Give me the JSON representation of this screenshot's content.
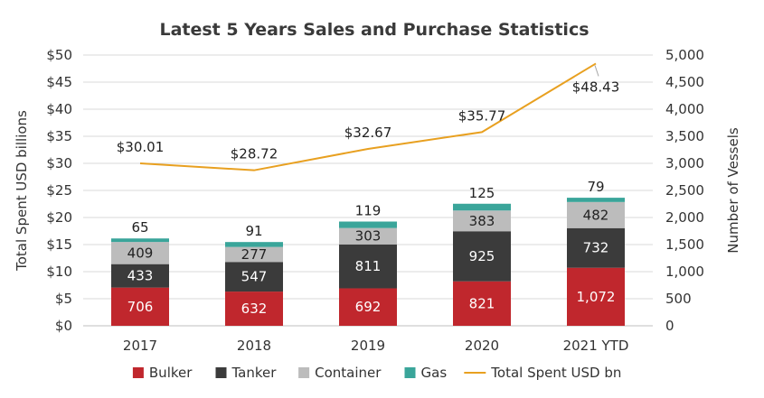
{
  "chart_data": {
    "type": "bar",
    "subtype": "stacked-bar-with-line-secondary-axis",
    "title": "Latest 5 Years Sales and Purchase Statistics",
    "categories": [
      "2017",
      "2018",
      "2019",
      "2020",
      "2021 YTD"
    ],
    "ylabel": "Total Spent USD billions",
    "y2label": "Number of Vessels",
    "ylim": [
      0,
      50
    ],
    "y_ticks": [
      "$0",
      "$5",
      "$10",
      "$15",
      "$20",
      "$25",
      "$30",
      "$35",
      "$40",
      "$45",
      "$50"
    ],
    "y2lim": [
      0,
      5000
    ],
    "y2_ticks": [
      "0",
      "500",
      "1,000",
      "1,500",
      "2,000",
      "2,500",
      "3,000",
      "3,500",
      "4,000",
      "4,500",
      "5,000"
    ],
    "grid": true,
    "legend_position": "bottom",
    "series": [
      {
        "name": "Bulker",
        "type": "bar",
        "axis": "right",
        "color": "#c0272d",
        "label_color": "#ffffff",
        "values": [
          706,
          632,
          692,
          821,
          1072
        ],
        "labels": [
          "706",
          "632",
          "692",
          "821",
          "1,072"
        ]
      },
      {
        "name": "Tanker",
        "type": "bar",
        "axis": "right",
        "color": "#3b3b3b",
        "label_color": "#ffffff",
        "values": [
          433,
          547,
          811,
          925,
          732
        ],
        "labels": [
          "433",
          "547",
          "811",
          "925",
          "732"
        ]
      },
      {
        "name": "Container",
        "type": "bar",
        "axis": "right",
        "color": "#bcbcbc",
        "label_color": "#222222",
        "values": [
          409,
          277,
          303,
          383,
          482
        ],
        "labels": [
          "409",
          "277",
          "303",
          "383",
          "482"
        ]
      },
      {
        "name": "Gas",
        "type": "bar",
        "axis": "right",
        "color": "#3aa59a",
        "label_color": "#222222",
        "values": [
          65,
          91,
          119,
          125,
          79
        ],
        "labels": [
          "65",
          "91",
          "119",
          "125",
          "79"
        ]
      },
      {
        "name": "Total Spent USD bn",
        "type": "line",
        "axis": "left",
        "color": "#e8a020",
        "values": [
          30.01,
          28.72,
          32.67,
          35.77,
          48.43
        ],
        "labels": [
          "$30.01",
          "$28.72",
          "$32.67",
          "$35.77",
          "$48.43"
        ]
      }
    ]
  }
}
